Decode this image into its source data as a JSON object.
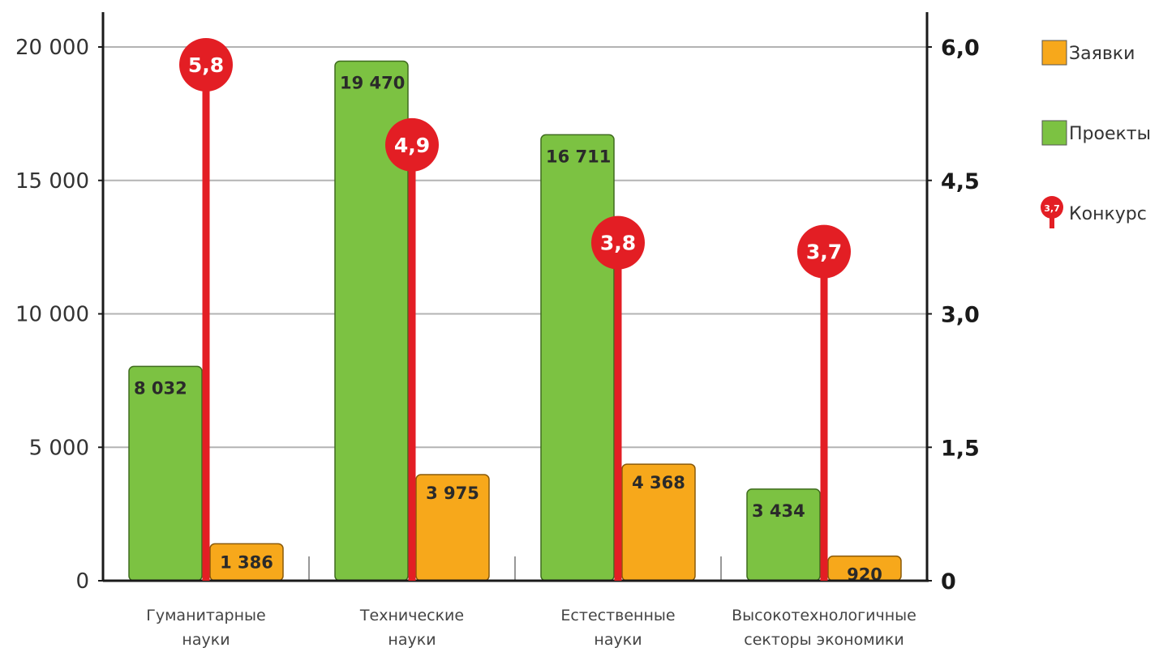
{
  "chart_data": {
    "type": "bar",
    "categories": [
      [
        "Гуманитарные",
        "науки"
      ],
      [
        "Технические",
        "науки"
      ],
      [
        "Естественные",
        "науки"
      ],
      [
        "Высокотехнологичные",
        "секторы экономики"
      ]
    ],
    "series": [
      {
        "name": "Проекты",
        "axis": "left",
        "color": "#7cc242",
        "values": [
          8032,
          19470,
          16711,
          3434
        ],
        "labels": [
          "8 032",
          "19 470",
          "16 711",
          "3 434"
        ]
      },
      {
        "name": "Заявки",
        "axis": "left",
        "color": "#f7a81b",
        "values": [
          1386,
          3975,
          4368,
          920
        ],
        "labels": [
          "1 386",
          "3 975",
          "4 368",
          "920"
        ]
      },
      {
        "name": "Конкурс",
        "axis": "right",
        "type": "pin",
        "color": "#e31e24",
        "values": [
          5.8,
          4.9,
          3.8,
          3.7
        ],
        "labels": [
          "5,8",
          "4,9",
          "3,8",
          "3,7"
        ]
      }
    ],
    "y_left": {
      "range": [
        0,
        20000
      ],
      "ticks": [
        0,
        5000,
        10000,
        15000,
        20000
      ],
      "tick_labels": [
        "0",
        "5 000",
        "10 000",
        "15 000",
        "20 000"
      ]
    },
    "y_right": {
      "range": [
        0,
        6.0
      ],
      "ticks": [
        0,
        1.5,
        3.0,
        4.5,
        6.0
      ],
      "tick_labels": [
        "0",
        "1,5",
        "3,0",
        "4,5",
        "6,0"
      ]
    },
    "grid": true,
    "legend": {
      "placement": "right",
      "items": [
        {
          "label": "Заявки",
          "marker": "square",
          "color": "#f7a81b"
        },
        {
          "label": "Проекты",
          "marker": "square",
          "color": "#7cc242"
        },
        {
          "label": "Конкурс",
          "marker": "pin",
          "color": "#e31e24",
          "marker_text": "3,7"
        }
      ]
    }
  }
}
